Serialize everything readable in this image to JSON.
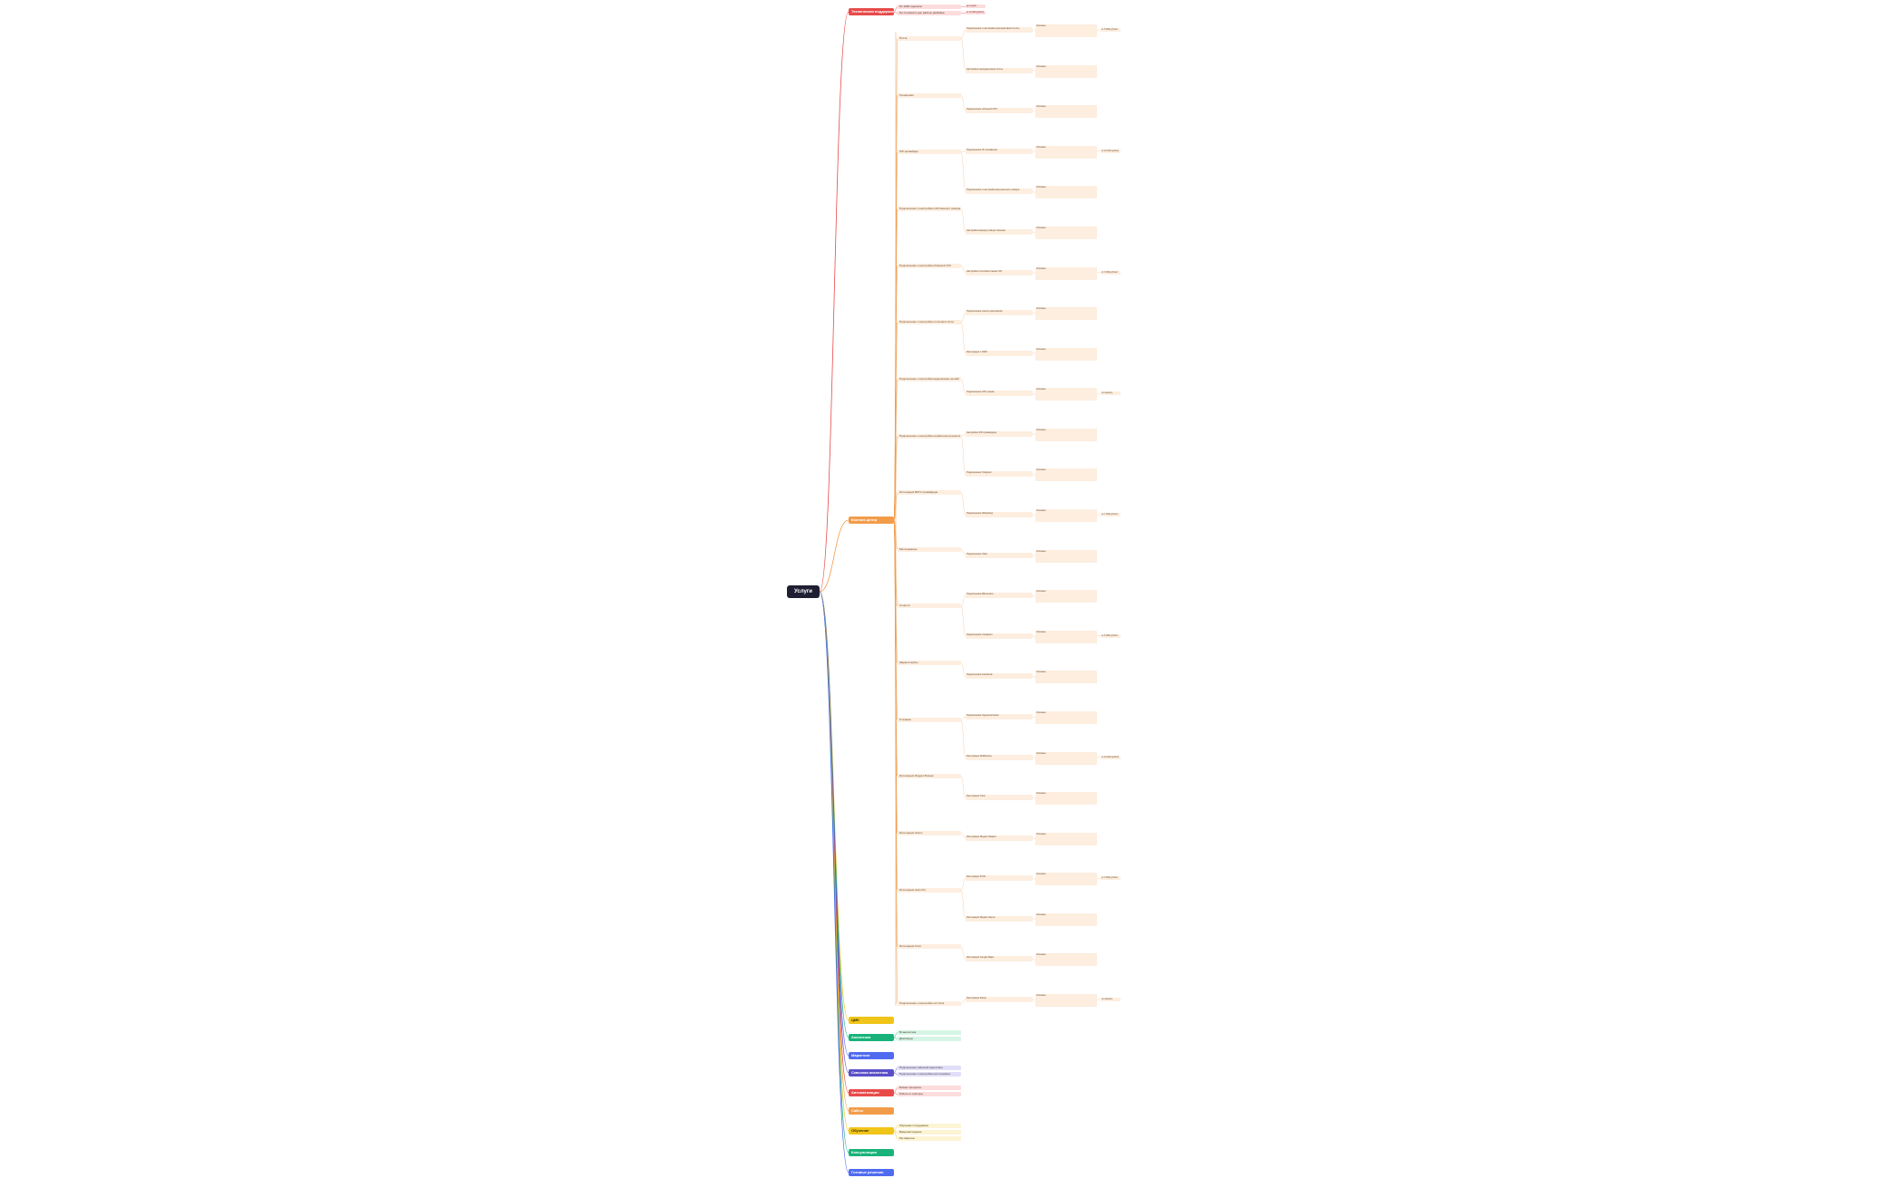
{
  "root": {
    "label": "Услуги"
  },
  "colors": {
    "red": "#e84a4a",
    "orange": "#f29c4a",
    "yellow": "#f0c419",
    "green": "#19b37a",
    "blue": "#4f6bf0",
    "indigo": "#5a4fc8",
    "light_orange": "#fdeee0",
    "light_red": "#fcdcdc",
    "light_green": "#d6f5e6",
    "light_indigo": "#e1defa",
    "light_yellow": "#fdf4d3"
  },
  "categories": [
    {
      "label": "Техническая поддержка",
      "color": "red",
      "children": [
        {
          "label": "По 1000 подписок",
          "tag": "до 3 дней"
        },
        {
          "label": "По стоимости доп работы разбивка",
          "tag": "от 12 000 рублей"
        }
      ]
    },
    {
      "label": "Контакт-центр",
      "color": "orange",
      "children": [
        {
          "label": "Почта"
        },
        {
          "label": "Телефония"
        },
        {
          "label": "SIP-провайдер"
        },
        {
          "label": "Подключение и настройка собственного номера телефона"
        },
        {
          "label": "Подключение и настройка облачной АТС"
        },
        {
          "label": "Подключение и настройка голосового бота"
        },
        {
          "label": "Подключение и настройка видеозвонка на сайт"
        },
        {
          "label": "Подключение и настройка онлайн-консультанта"
        },
        {
          "label": "Интеграция ВАТС провайдера"
        },
        {
          "label": "Мессенджеры"
        },
        {
          "label": "Соцсети"
        },
        {
          "label": "Маркетплейсы"
        },
        {
          "label": "Отзовики"
        },
        {
          "label": "Интеграция Яндекс Бизнес"
        },
        {
          "label": "Интеграция Авито"
        },
        {
          "label": "Интеграция Avito Pro"
        },
        {
          "label": "Интеграция Ozon"
        },
        {
          "label": "Подключение и настройка чат-бота"
        }
      ]
    },
    {
      "label": "ЦМК",
      "color": "yellow",
      "children": []
    },
    {
      "label": "Аналитика",
      "color": "green",
      "children": [
        {
          "label": "BI-аналитика"
        },
        {
          "label": "Дашборды"
        }
      ]
    },
    {
      "label": "Маркетинг",
      "color": "blue",
      "children": []
    },
    {
      "label": "Сквозная аналитика",
      "color": "indigo",
      "children": [
        {
          "label": "Подключение сквозной аналитики"
        },
        {
          "label": "Подключение и настройка коллтрекинга"
        }
      ]
    },
    {
      "label": "Автоматизация",
      "color": "red",
      "children": [
        {
          "label": "Бизнес-процессы"
        },
        {
          "label": "Роботы и триггеры"
        }
      ]
    },
    {
      "label": "Сайты",
      "color": "orange",
      "children": []
    },
    {
      "label": "Обучение",
      "color": "yellow",
      "children": [
        {
          "label": "Обучение сотрудников"
        },
        {
          "label": "Видеоинструкции"
        },
        {
          "label": "Регламенты"
        }
      ]
    },
    {
      "label": "Консультации",
      "color": "green",
      "children": []
    },
    {
      "label": "Готовые решения",
      "color": "blue",
      "children": []
    }
  ],
  "level3": [
    "Подключение и настройка корпоративной почты",
    "Настройка переадресации почты",
    "Подключение облачной АТС",
    "Подключение IP-телефонии",
    "Подключение и настройка виртуального номера",
    "Настройка маршрутизации звонков",
    "Настройка голосового меню IVR",
    "Подключение записи разговоров",
    "Интеграция с CRM",
    "Подключение SIP-транка",
    "Настройка SIP-провайдера",
    "Подключение Telegram",
    "Подключение WhatsApp",
    "Подключение Viber",
    "Подключение ВКонтакте",
    "Подключение Instagram",
    "Подключение Facebook",
    "Подключение Одноклассники",
    "Интеграция Wildberries",
    "Интеграция Ozon",
    "Интеграция Яндекс Маркет",
    "Интеграция 2ГИС",
    "Интеграция Яндекс Карты",
    "Интеграция Google Maps",
    "Интеграция Flamp"
  ],
  "note_label": "Описание",
  "tags": [
    "от 5 000 рублей",
    "от 3 000 рублей",
    "от 7 000 рублей",
    "от 10 000 рублей",
    "по запросу"
  ]
}
